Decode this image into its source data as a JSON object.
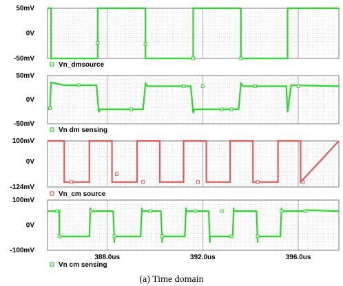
{
  "chart_data": [
    {
      "type": "line",
      "legend": "Vn_dmsource",
      "color": "#22dd22",
      "y_ticks": [
        "50mV",
        "0V",
        "-50mV"
      ],
      "ylim": [
        -50,
        50
      ],
      "x": [
        385.5,
        385.65,
        385.65,
        387.6,
        387.6,
        389.6,
        389.6,
        391.6,
        391.6,
        393.6,
        393.6,
        395.55,
        395.55,
        397.7
      ],
      "y": [
        50,
        50,
        -50,
        -50,
        50,
        50,
        -50,
        -50,
        50,
        50,
        -50,
        -50,
        50,
        50
      ],
      "markers": {
        "x": [
          387.6,
          389.6,
          391.6,
          393.6
        ],
        "y": [
          -19,
          -22,
          -50,
          -50
        ]
      }
    },
    {
      "type": "line",
      "legend": "Vn dm sensing",
      "color": "#22dd22",
      "y_ticks": [
        "50mV",
        "0V",
        "-50mV"
      ],
      "ylim": [
        -50,
        50
      ],
      "x": [
        385.5,
        385.6,
        385.65,
        386.2,
        387.4,
        387.55,
        387.65,
        387.7,
        387.8,
        389.5,
        389.6,
        389.7,
        389.8,
        391.5,
        391.6,
        391.65,
        391.75,
        393.5,
        393.6,
        393.7,
        393.8,
        395.5,
        395.55,
        395.7,
        397.7
      ],
      "y": [
        -18,
        -18,
        36,
        30,
        30,
        30,
        -26,
        -20,
        -20,
        -20,
        34,
        28,
        28,
        28,
        -28,
        -20,
        -20,
        -20,
        34,
        28,
        28,
        28,
        -26,
        30,
        28
      ],
      "markers": {
        "x": [
          385.6,
          386.8,
          389.0,
          391.2,
          392.0,
          392.8,
          393.2,
          394.2,
          396.0
        ],
        "y": [
          -18,
          30,
          -20,
          28,
          28,
          -20,
          -20,
          28,
          28
        ]
      }
    },
    {
      "type": "line",
      "legend": "Vn_cm source",
      "color": "#ee5555",
      "y_ticks": [
        "100mV",
        "0V",
        "-124mV"
      ],
      "ylim": [
        -124,
        100
      ],
      "x": [
        385.5,
        386.2,
        386.2,
        387.25,
        387.25,
        388.2,
        388.2,
        389.25,
        389.25,
        390.2,
        390.2,
        391.2,
        391.2,
        392.15,
        392.15,
        393.15,
        393.15,
        394.1,
        394.1,
        395.15,
        395.15,
        396.1,
        396.1,
        397.7
      ],
      "y": [
        100,
        100,
        -100,
        -100,
        100,
        100,
        -100,
        -100,
        100,
        100,
        -100,
        -100,
        100,
        100,
        -100,
        -100,
        100,
        100,
        -100,
        -100,
        100,
        100,
        -100,
        100
      ],
      "markers": {
        "x": [
          386.5,
          388.4,
          389.5,
          391.8,
          394.3,
          396.2
        ],
        "y": [
          -100,
          -62,
          -100,
          -100,
          -100,
          -100
        ]
      }
    },
    {
      "type": "line",
      "legend": "Vn cm sensing",
      "color": "#22dd22",
      "y_ticks": [
        "100mV",
        "0V",
        "-100mV"
      ],
      "ylim": [
        -100,
        100
      ],
      "x": [
        385.5,
        385.9,
        386.0,
        386.0,
        387.2,
        387.25,
        387.3,
        387.3,
        388.2,
        388.25,
        388.3,
        388.3,
        389.35,
        389.4,
        389.45,
        389.45,
        390.2,
        390.25,
        390.3,
        390.3,
        391.2,
        391.25,
        391.3,
        391.3,
        392.2,
        392.25,
        392.3,
        392.3,
        393.2,
        393.25,
        393.3,
        393.3,
        394.2,
        394.25,
        394.3,
        394.3,
        395.2,
        395.25,
        395.3,
        395.3,
        396.2,
        396.25,
        396.3,
        397.7
      ],
      "y": [
        56,
        56,
        58,
        -45,
        -45,
        -45,
        70,
        56,
        56,
        56,
        -70,
        -45,
        -45,
        -45,
        70,
        56,
        56,
        56,
        -70,
        -45,
        -45,
        -45,
        70,
        56,
        56,
        56,
        -70,
        -45,
        -45,
        -45,
        70,
        56,
        56,
        56,
        -70,
        -45,
        -45,
        -45,
        70,
        56,
        56,
        56,
        60,
        56
      ],
      "markers": {
        "x": [
          385.9,
          386.0,
          387.3,
          388.3,
          389.8,
          390.3,
          391.7,
          392.8,
          393.2,
          394.3,
          395.3,
          396.3
        ],
        "y": [
          56,
          -45,
          56,
          -45,
          56,
          -45,
          56,
          56,
          -45,
          -45,
          56,
          56
        ]
      }
    }
  ],
  "x_axis": {
    "range": [
      385.5,
      397.7
    ],
    "tick_values": [
      388.0,
      392.0,
      396.0
    ],
    "tick_labels": [
      "388.0us",
      "392.0us",
      "396.0us"
    ]
  },
  "caption": "(a) Time domain"
}
